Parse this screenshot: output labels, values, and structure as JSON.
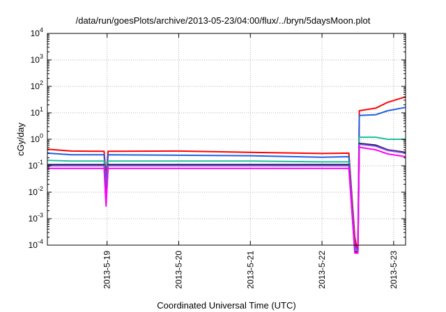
{
  "chart_data": {
    "type": "line",
    "title": "/data/run/goesPlots/archive/2013-05-23/04:00/flux/../bryn/5daysMoon.plot",
    "xlabel": "Coordinated Universal Time (UTC)",
    "ylabel": "cGy/day",
    "yscale": "log",
    "ylim": [
      0.0001,
      10000
    ],
    "xlim": [
      "2013-05-18 04:00",
      "2013-05-23 04:00"
    ],
    "grid": true,
    "yticks": [
      {
        "base": "10",
        "exp": "-4"
      },
      {
        "base": "10",
        "exp": "-3"
      },
      {
        "base": "10",
        "exp": "-2"
      },
      {
        "base": "10",
        "exp": "-1"
      },
      {
        "base": "10",
        "exp": "0"
      },
      {
        "base": "10",
        "exp": "1"
      },
      {
        "base": "10",
        "exp": "2"
      },
      {
        "base": "10",
        "exp": "3"
      },
      {
        "base": "10",
        "exp": "4"
      }
    ],
    "xticks": [
      {
        "label": "2013-5-19",
        "x": "2013-05-19 00:00"
      },
      {
        "label": "2013-5-20",
        "x": "2013-05-20 00:00"
      },
      {
        "label": "2013-5-21",
        "x": "2013-05-21 00:00"
      },
      {
        "label": "2013-5-22",
        "x": "2013-05-22 00:00"
      },
      {
        "label": "2013-5-23",
        "x": "2013-05-23 00:00"
      }
    ],
    "series": [
      {
        "color": "#ff0000",
        "points": [
          [
            "2013-05-18 04:00",
            0.42
          ],
          [
            "2013-05-18 12:00",
            0.36
          ],
          [
            "2013-05-18 23:00",
            0.35
          ],
          [
            "2013-05-18 23:40",
            0.04
          ],
          [
            "2013-05-19 00:20",
            0.35
          ],
          [
            "2013-05-20 00:00",
            0.36
          ],
          [
            "2013-05-21 00:00",
            0.32
          ],
          [
            "2013-05-22 00:00",
            0.29
          ],
          [
            "2013-05-22 09:00",
            0.3
          ],
          [
            "2013-05-22 11:00",
            0.0002
          ],
          [
            "2013-05-22 12:00",
            5e-05
          ],
          [
            "2013-05-22 12:30",
            12
          ],
          [
            "2013-05-22 18:00",
            15
          ],
          [
            "2013-05-22 22:00",
            25
          ],
          [
            "2013-05-23 04:00",
            40
          ]
        ]
      },
      {
        "color": "#1f5fe0",
        "points": [
          [
            "2013-05-18 04:00",
            0.3
          ],
          [
            "2013-05-18 12:00",
            0.26
          ],
          [
            "2013-05-18 23:00",
            0.26
          ],
          [
            "2013-05-18 23:40",
            0.02
          ],
          [
            "2013-05-19 00:20",
            0.26
          ],
          [
            "2013-05-20 00:00",
            0.25
          ],
          [
            "2013-05-21 00:00",
            0.24
          ],
          [
            "2013-05-22 00:00",
            0.21
          ],
          [
            "2013-05-22 09:00",
            0.22
          ],
          [
            "2013-05-22 11:00",
            0.0001
          ],
          [
            "2013-05-22 12:00",
            4e-05
          ],
          [
            "2013-05-22 12:30",
            8
          ],
          [
            "2013-05-22 18:00",
            8.5
          ],
          [
            "2013-05-22 22:00",
            12
          ],
          [
            "2013-05-23 04:00",
            16
          ]
        ]
      },
      {
        "color": "#1fc0a0",
        "points": [
          [
            "2013-05-18 04:00",
            0.16
          ],
          [
            "2013-05-18 12:00",
            0.15
          ],
          [
            "2013-05-18 23:00",
            0.15
          ],
          [
            "2013-05-18 23:40",
            0.01
          ],
          [
            "2013-05-19 00:20",
            0.15
          ],
          [
            "2013-05-20 00:00",
            0.15
          ],
          [
            "2013-05-21 00:00",
            0.15
          ],
          [
            "2013-05-22 00:00",
            0.14
          ],
          [
            "2013-05-22 09:00",
            0.14
          ],
          [
            "2013-05-22 11:00",
            8e-05
          ],
          [
            "2013-05-22 12:00",
            3e-05
          ],
          [
            "2013-05-22 12:30",
            1.2
          ],
          [
            "2013-05-22 18:00",
            1.2
          ],
          [
            "2013-05-22 22:00",
            1.0
          ],
          [
            "2013-05-23 04:00",
            1.0
          ]
        ]
      },
      {
        "color": "#1a1a40",
        "points": [
          [
            "2013-05-18 04:00",
            0.11
          ],
          [
            "2013-05-18 12:00",
            0.11
          ],
          [
            "2013-05-18 23:00",
            0.11
          ],
          [
            "2013-05-18 23:40",
            0.006
          ],
          [
            "2013-05-19 00:20",
            0.11
          ],
          [
            "2013-05-20 00:00",
            0.11
          ],
          [
            "2013-05-21 00:00",
            0.11
          ],
          [
            "2013-05-22 00:00",
            0.11
          ],
          [
            "2013-05-22 09:00",
            0.11
          ],
          [
            "2013-05-22 11:00",
            6e-05
          ],
          [
            "2013-05-22 12:00",
            3e-05
          ],
          [
            "2013-05-22 12:30",
            0.7
          ],
          [
            "2013-05-22 18:00",
            0.6
          ],
          [
            "2013-05-22 22:00",
            0.4
          ],
          [
            "2013-05-23 04:00",
            0.32
          ]
        ]
      },
      {
        "color": "#8a4af0",
        "points": [
          [
            "2013-05-18 04:00",
            0.1
          ],
          [
            "2013-05-18 12:00",
            0.1
          ],
          [
            "2013-05-18 23:00",
            0.1
          ],
          [
            "2013-05-18 23:40",
            0.004
          ],
          [
            "2013-05-19 00:20",
            0.1
          ],
          [
            "2013-05-20 00:00",
            0.1
          ],
          [
            "2013-05-21 00:00",
            0.1
          ],
          [
            "2013-05-22 00:00",
            0.1
          ],
          [
            "2013-05-22 09:00",
            0.1
          ],
          [
            "2013-05-22 11:00",
            5e-05
          ],
          [
            "2013-05-22 12:00",
            3e-05
          ],
          [
            "2013-05-22 12:30",
            0.65
          ],
          [
            "2013-05-22 18:00",
            0.55
          ],
          [
            "2013-05-22 22:00",
            0.38
          ],
          [
            "2013-05-23 04:00",
            0.3
          ]
        ]
      },
      {
        "color": "#ff00ff",
        "points": [
          [
            "2013-05-18 04:00",
            0.08
          ],
          [
            "2013-05-18 12:00",
            0.08
          ],
          [
            "2013-05-18 23:00",
            0.08
          ],
          [
            "2013-05-18 23:40",
            0.003
          ],
          [
            "2013-05-19 00:20",
            0.08
          ],
          [
            "2013-05-20 00:00",
            0.08
          ],
          [
            "2013-05-21 00:00",
            0.08
          ],
          [
            "2013-05-22 00:00",
            0.08
          ],
          [
            "2013-05-22 09:00",
            0.08
          ],
          [
            "2013-05-22 11:00",
            4e-05
          ],
          [
            "2013-05-22 12:00",
            2e-05
          ],
          [
            "2013-05-22 12:30",
            0.5
          ],
          [
            "2013-05-22 18:00",
            0.4
          ],
          [
            "2013-05-22 22:00",
            0.28
          ],
          [
            "2013-05-23 04:00",
            0.22
          ]
        ]
      }
    ]
  }
}
